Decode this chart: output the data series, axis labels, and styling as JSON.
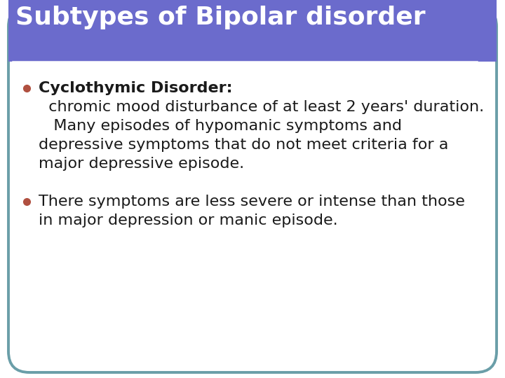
{
  "title": "Subtypes of Bipolar disorder",
  "title_bg_color": "#6b6bcc",
  "title_text_color": "#ffffff",
  "title_fontsize": 26,
  "body_bg_color": "#ffffff",
  "border_color": "#6a9ea8",
  "bullet_color": "#b05040",
  "bullet1_bold": "Cyclothymic Disorder:",
  "bullet1_line1": "  chromic mood disturbance of at least 2 years' duration.",
  "bullet1_line2": "   Many episodes of hypomanic symptoms and",
  "bullet1_line3": "depressive symptoms that do not meet criteria for a",
  "bullet1_line4": "major depressive episode.",
  "bullet2_line1": "There symptoms are less severe or intense than those",
  "bullet2_line2": "in major depression or manic episode.",
  "body_text_color": "#1a1a1a",
  "body_fontsize": 16,
  "fig_bg_color": "#ffffff"
}
